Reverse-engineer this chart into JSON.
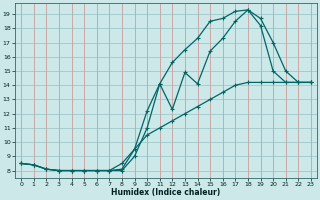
{
  "xlabel": "Humidex (Indice chaleur)",
  "bg_color": "#cce8e8",
  "line_color": "#006666",
  "grid_color_v": "#cc7777",
  "grid_color_h": "#88bbbb",
  "xlim": [
    -0.5,
    23.5
  ],
  "ylim": [
    7.5,
    19.8
  ],
  "xticks": [
    0,
    1,
    2,
    3,
    4,
    5,
    6,
    7,
    8,
    9,
    10,
    11,
    12,
    13,
    14,
    15,
    16,
    17,
    18,
    19,
    20,
    21,
    22,
    23
  ],
  "yticks": [
    8,
    9,
    10,
    11,
    12,
    13,
    14,
    15,
    16,
    17,
    18,
    19
  ],
  "line1_x": [
    0,
    1,
    2,
    3,
    4,
    5,
    6,
    7,
    8,
    9,
    10,
    11,
    12,
    13,
    14,
    15,
    16,
    17,
    18,
    19,
    20,
    21,
    22,
    23
  ],
  "line1_y": [
    8.5,
    8.4,
    8.1,
    8.0,
    8.0,
    8.0,
    8.0,
    8.0,
    8.5,
    9.5,
    10.5,
    11.0,
    11.5,
    12.0,
    12.5,
    13.0,
    13.5,
    14.0,
    14.2,
    14.2,
    14.2,
    14.2,
    14.2,
    14.2
  ],
  "line2_x": [
    0,
    1,
    2,
    3,
    4,
    5,
    6,
    7,
    8,
    9,
    10,
    11,
    12,
    13,
    14,
    15,
    16,
    17,
    18,
    19,
    20,
    21,
    22,
    23
  ],
  "line2_y": [
    8.5,
    8.4,
    8.1,
    8.0,
    8.0,
    8.0,
    8.0,
    8.0,
    8.1,
    9.5,
    12.2,
    14.1,
    12.3,
    14.9,
    14.1,
    16.4,
    17.3,
    18.5,
    19.3,
    18.7,
    17.0,
    15.0,
    14.2,
    14.2
  ],
  "line3_x": [
    0,
    1,
    2,
    3,
    4,
    5,
    6,
    7,
    8,
    9,
    10,
    11,
    12,
    13,
    14,
    15,
    16,
    17,
    18,
    19,
    20,
    21,
    22,
    23
  ],
  "line3_y": [
    8.5,
    8.4,
    8.1,
    8.0,
    8.0,
    8.0,
    8.0,
    8.0,
    8.0,
    9.0,
    11.0,
    14.1,
    15.6,
    16.5,
    17.3,
    18.5,
    18.7,
    19.2,
    19.3,
    18.2,
    15.0,
    14.2,
    14.2,
    14.2
  ],
  "marker": "+",
  "markersize": 3,
  "linewidth": 0.9
}
